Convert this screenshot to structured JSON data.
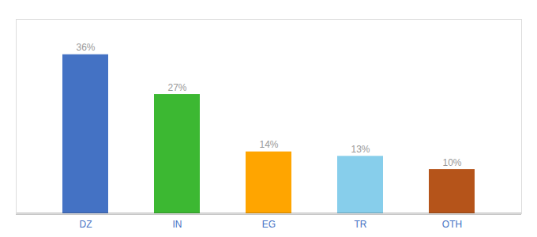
{
  "chart_data": {
    "type": "bar",
    "categories": [
      "DZ",
      "IN",
      "EG",
      "TR",
      "OTH"
    ],
    "values": [
      36,
      27,
      14,
      13,
      10
    ],
    "value_labels": [
      "36%",
      "27%",
      "14%",
      "13%",
      "10%"
    ],
    "colors": [
      "#4472C4",
      "#3CB832",
      "#FFA500",
      "#87CEEB",
      "#B5541A"
    ],
    "ylim": [
      0,
      44
    ],
    "data_labels": true,
    "tick_labels": "x",
    "grid": false
  }
}
